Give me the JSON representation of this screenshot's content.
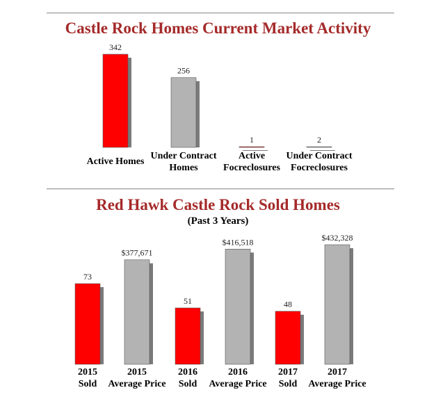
{
  "chart_data": [
    {
      "type": "bar",
      "title": "Castle Rock Homes Current Market Activity",
      "categories": [
        [
          "Active Homes"
        ],
        [
          "Under Contract",
          "Homes"
        ],
        [
          "Active",
          "Focreclosures"
        ],
        [
          "Under Contract",
          "Focreclosures"
        ]
      ],
      "values": [
        342,
        256,
        1,
        2
      ],
      "value_labels": [
        "342",
        "256",
        "1",
        "2"
      ],
      "colors": [
        "red",
        "gray",
        "red",
        "gray"
      ],
      "ylim": [
        0,
        342
      ],
      "grid": false,
      "legend": "none"
    },
    {
      "type": "bar",
      "title": "Red Hawk Castle Rock Sold Homes",
      "subtitle": "(Past 3 Years)",
      "categories": [
        [
          "2015",
          "Sold"
        ],
        [
          "2015",
          "Average Price"
        ],
        [
          "2016",
          "Sold"
        ],
        [
          "2016",
          "Average Price"
        ],
        [
          "2017",
          "Sold"
        ],
        [
          "2017",
          "Average Price"
        ]
      ],
      "values": [
        73,
        377671,
        51,
        416518,
        48,
        432328
      ],
      "value_labels": [
        "73",
        "$377,671",
        "51",
        "$416,518",
        "48",
        "$432,328"
      ],
      "colors": [
        "red",
        "gray",
        "red",
        "gray",
        "red",
        "gray"
      ],
      "grid": false,
      "legend": "none"
    }
  ],
  "palette": {
    "red": "#ff0000",
    "gray": "#b3b3b3",
    "title_color": "#a52a2a"
  }
}
